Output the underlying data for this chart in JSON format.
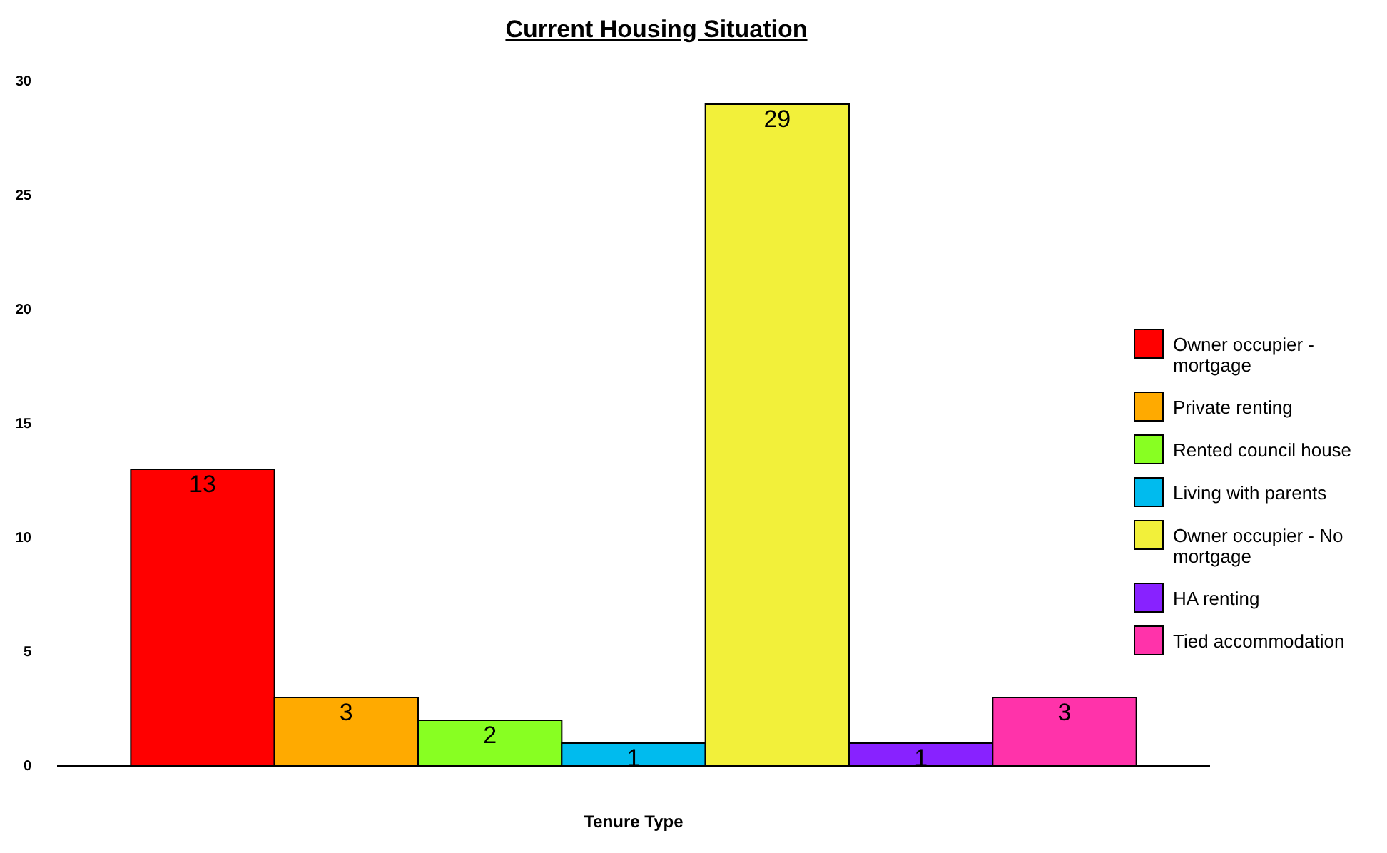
{
  "chart_data": {
    "type": "bar",
    "title": "Current Housing Situation",
    "xlabel": "Tenure Type",
    "categories": [
      null
    ],
    "series": [
      {
        "name": "Owner occupier - mortgage",
        "color": "#ff0000",
        "values": [
          13
        ]
      },
      {
        "name": "Private renting",
        "color": "#ffaa00",
        "values": [
          3
        ]
      },
      {
        "name": "Rented council house",
        "color": "#88ff22",
        "values": [
          2
        ]
      },
      {
        "name": "Living with parents",
        "color": "#00bbee",
        "values": [
          1
        ]
      },
      {
        "name": "Owner occupier - No mortgage",
        "color": "#f2f03a",
        "values": [
          29
        ]
      },
      {
        "name": "HA renting",
        "color": "#8822ff",
        "values": [
          1
        ]
      },
      {
        "name": "Tied accommodation",
        "color": "#ff33aa",
        "values": [
          3
        ]
      }
    ],
    "ylim": [
      0,
      30
    ],
    "yticks": [
      0,
      5,
      10,
      15,
      20,
      25,
      30
    ],
    "data_labels": true,
    "legend": "right",
    "grid": false
  }
}
